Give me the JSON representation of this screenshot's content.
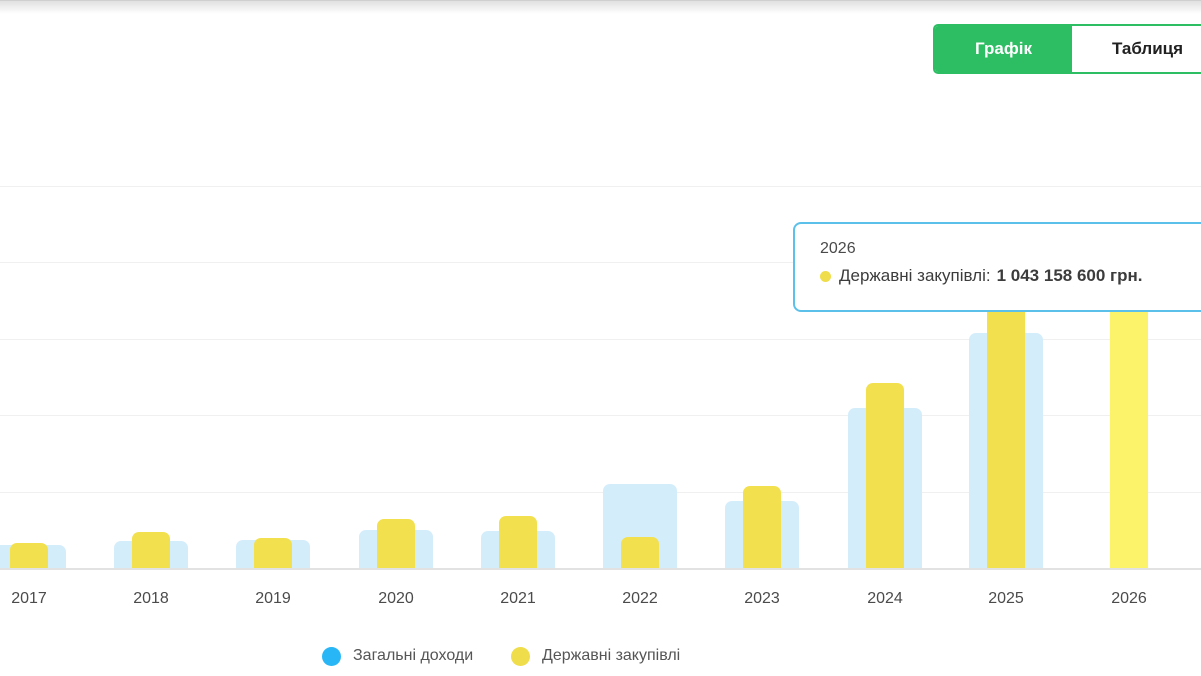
{
  "tabs": {
    "chart_label": "Графік",
    "table_label": "Таблиця"
  },
  "tooltip": {
    "title": "2026",
    "series_label": "Державні закупівлі:",
    "value": "1 043 158 600 грн."
  },
  "legend": [
    {
      "label": "Загальні доходи",
      "color": "#29b6f6"
    },
    {
      "label": "Державні закупівлі",
      "color": "#f0dd4b"
    }
  ],
  "colors": {
    "accent_green": "#2dbe64",
    "bar_blue": "#d4edfb",
    "bar_yellow": "#f3e04e",
    "bar_yellow_highlight": "#fdf36a",
    "legend_blue_dot": "#29b6f6",
    "legend_yellow_dot": "#f0dd4b",
    "tooltip_border": "#5cc1ea",
    "gridline": "#f0f0f0"
  },
  "chart_data": {
    "type": "bar",
    "title": "",
    "xlabel": "",
    "ylabel": "",
    "categories": [
      "2017",
      "2018",
      "2019",
      "2020",
      "2021",
      "2022",
      "2023",
      "2024",
      "2025",
      "2026"
    ],
    "series": [
      {
        "name": "Загальні доходи",
        "values_mln_uah": [
          76,
          87,
          93,
          124,
          120,
          275,
          220,
          523,
          769,
          null
        ]
      },
      {
        "name": "Державні закупівлі",
        "values_mln_uah": [
          81,
          117,
          97,
          161,
          171,
          102,
          269,
          605,
          945,
          1043.1586
        ]
      }
    ],
    "exact_value_2026_procurement": "1 043 158 600 грн.",
    "values_unit": "млн грн (estimated from gridlines; 2026 exact from tooltip)",
    "ylim_mln_uah": [
      0,
      1250
    ],
    "gridline_step_mln_uah": 250,
    "grid": true,
    "y_axis_labels_visible": false,
    "legend_position": "bottom",
    "highlighted_category": "2026",
    "tooltip_target": {
      "category": "2026",
      "series": "Державні закупівлі"
    }
  }
}
